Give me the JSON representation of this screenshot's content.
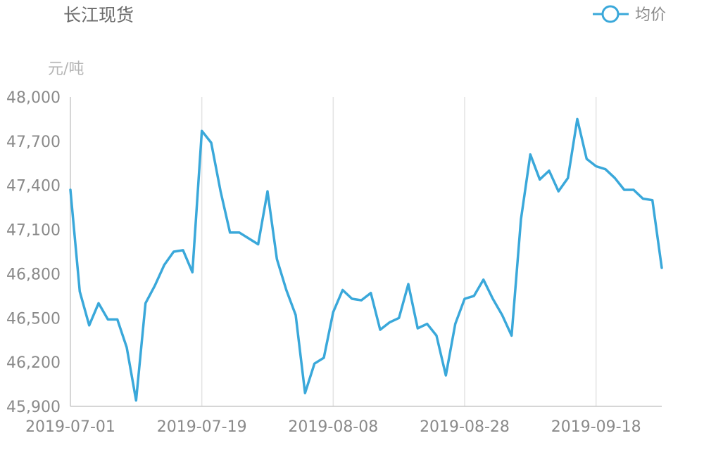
{
  "chart_data": {
    "type": "line",
    "title": "长江现货",
    "ylabel": "元/吨",
    "xlabel": "",
    "legend": {
      "position": "top-right"
    },
    "ylim": [
      45900,
      48000
    ],
    "y_ticks": [
      45900,
      46200,
      46500,
      46800,
      47100,
      47400,
      47700,
      48000
    ],
    "y_tick_labels": [
      "45,900",
      "46,200",
      "46,500",
      "46,800",
      "47,100",
      "47,400",
      "47,700",
      "48,000"
    ],
    "x_tick_labels": [
      "2019-07-01",
      "2019-07-19",
      "2019-08-08",
      "2019-08-28",
      "2019-09-18"
    ],
    "x_tick_index": [
      0,
      14,
      28,
      42,
      56
    ],
    "grid": {
      "vertical": true,
      "horizontal": false
    },
    "colors": {
      "series": "#3aa8da",
      "grid": "#e3e3e3",
      "axis": "#c8c8c8"
    },
    "series": [
      {
        "name": "均价",
        "values": [
          47370,
          46680,
          46450,
          46600,
          46490,
          46490,
          46300,
          45940,
          46600,
          46720,
          46860,
          46950,
          46960,
          46810,
          47770,
          47690,
          47360,
          47080,
          47080,
          47040,
          47000,
          47360,
          46900,
          46690,
          46520,
          45990,
          46190,
          46230,
          46540,
          46690,
          46630,
          46620,
          46670,
          46420,
          46470,
          46500,
          46730,
          46430,
          46460,
          46380,
          46110,
          46460,
          46630,
          46650,
          46760,
          46630,
          46520,
          46380,
          47170,
          47610,
          47440,
          47500,
          47360,
          47450,
          47850,
          47580,
          47530,
          47510,
          47450,
          47370,
          47370,
          47310,
          47300,
          46840
        ]
      }
    ]
  }
}
